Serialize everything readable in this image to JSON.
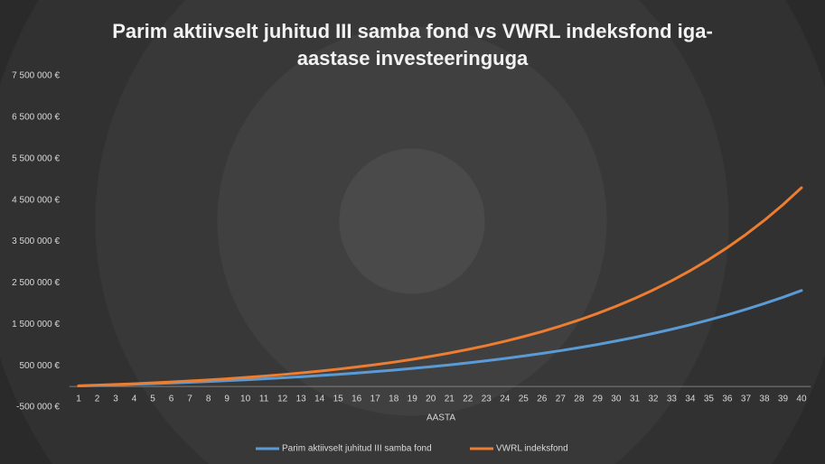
{
  "chart_data": {
    "type": "line",
    "title": "Parim aktiivselt juhitud III samba fond vs VWRL indeksfond iga-aastase investeeringuga",
    "x_label": "AASTA",
    "categories": [
      "1",
      "2",
      "3",
      "4",
      "5",
      "6",
      "7",
      "8",
      "9",
      "10",
      "11",
      "12",
      "13",
      "14",
      "15",
      "16",
      "17",
      "18",
      "19",
      "20",
      "21",
      "22",
      "23",
      "24",
      "25",
      "26",
      "27",
      "28",
      "29",
      "30",
      "31",
      "32",
      "33",
      "34",
      "35",
      "36",
      "37",
      "38",
      "39",
      "40"
    ],
    "series": [
      {
        "name": "Parim aktiivselt juhitud III samba fond",
        "color": "#5b9bd5",
        "values": [
          12000,
          24000,
          37000,
          52000,
          67000,
          83000,
          100000,
          119000,
          139000,
          160000,
          183000,
          208000,
          234000,
          262000,
          291000,
          324000,
          358000,
          394000,
          434000,
          476000,
          520000,
          568000,
          620000,
          675000,
          734000,
          797000,
          864000,
          936000,
          1013000,
          1096000,
          1184000,
          1279000,
          1380000,
          1488000,
          1604000,
          1727000,
          1860000,
          2002000,
          2153000,
          2316000
        ]
      },
      {
        "name": "VWRL indeksfond",
        "color": "#ed7d31",
        "values": [
          14000,
          30000,
          47000,
          65000,
          85000,
          107000,
          131000,
          157000,
          185000,
          216000,
          249000,
          286000,
          326000,
          369000,
          417000,
          469000,
          525000,
          586000,
          653000,
          726000,
          806000,
          893000,
          987000,
          1090000,
          1203000,
          1325000,
          1459000,
          1604000,
          1763000,
          1936000,
          2124000,
          2329000,
          2553000,
          2797000,
          3063000,
          3353000,
          3669000,
          4013000,
          4388000,
          4798000
        ]
      }
    ],
    "ylim": [
      -500000,
      7500000
    ],
    "yticks": [
      {
        "value": -500000,
        "label": "-500 000 €"
      },
      {
        "value": 500000,
        "label": "500 000 €"
      },
      {
        "value": 1500000,
        "label": "1 500 000 €"
      },
      {
        "value": 2500000,
        "label": "2 500 000 €"
      },
      {
        "value": 3500000,
        "label": "3 500 000 €"
      },
      {
        "value": 4500000,
        "label": "4 500 000 €"
      },
      {
        "value": 5500000,
        "label": "5 500 000 €"
      },
      {
        "value": 6500000,
        "label": "6 500 000 €"
      },
      {
        "value": 7500000,
        "label": "7 500 000 €"
      }
    ],
    "grid": false,
    "legend": "bottom"
  }
}
